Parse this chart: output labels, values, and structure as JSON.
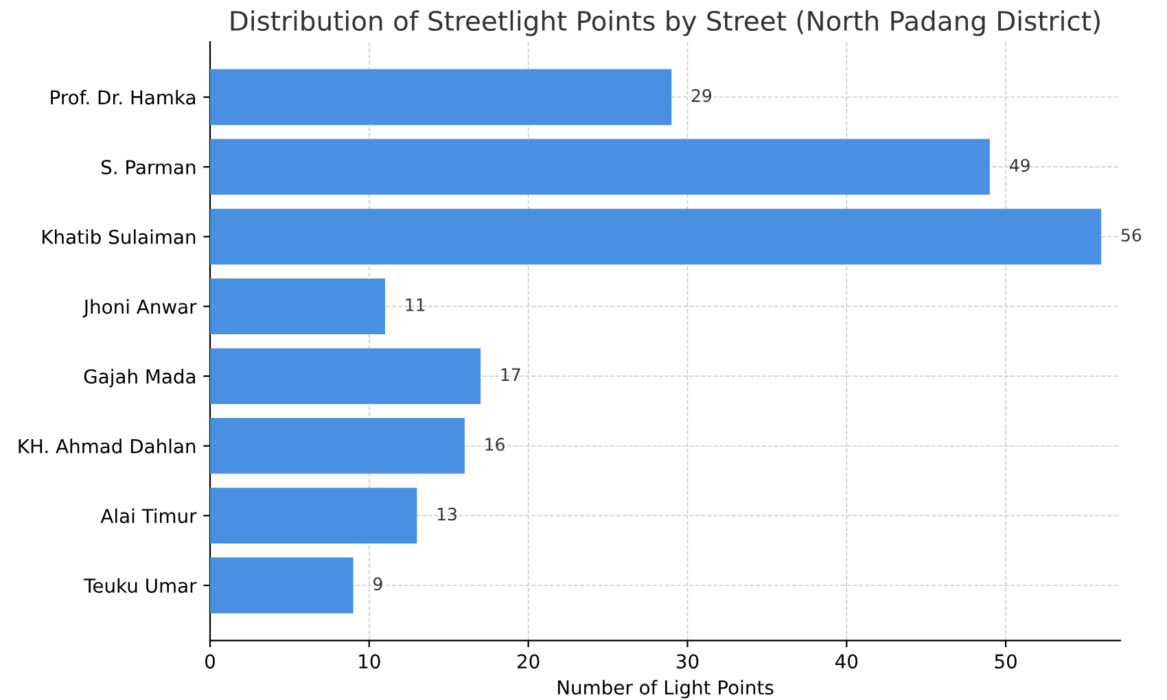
{
  "chart_data": {
    "type": "bar",
    "orientation": "horizontal",
    "title": "Distribution of Streetlight Points by Street (North Padang District)",
    "xlabel": "Number of Light Points",
    "categories": [
      "Prof. Dr. Hamka",
      "S. Parman",
      "Khatib Sulaiman",
      "Jhoni Anwar",
      "Gajah Mada",
      "KH. Ahmad Dahlan",
      "Alai Timur",
      "Teuku Umar"
    ],
    "values": [
      29,
      49,
      56,
      11,
      17,
      16,
      13,
      9
    ],
    "color": "#4a90e2",
    "xlim": [
      0,
      57.2
    ],
    "xticks": [
      0,
      10,
      20,
      30,
      40,
      50
    ],
    "grid": true,
    "data_labels": true
  }
}
